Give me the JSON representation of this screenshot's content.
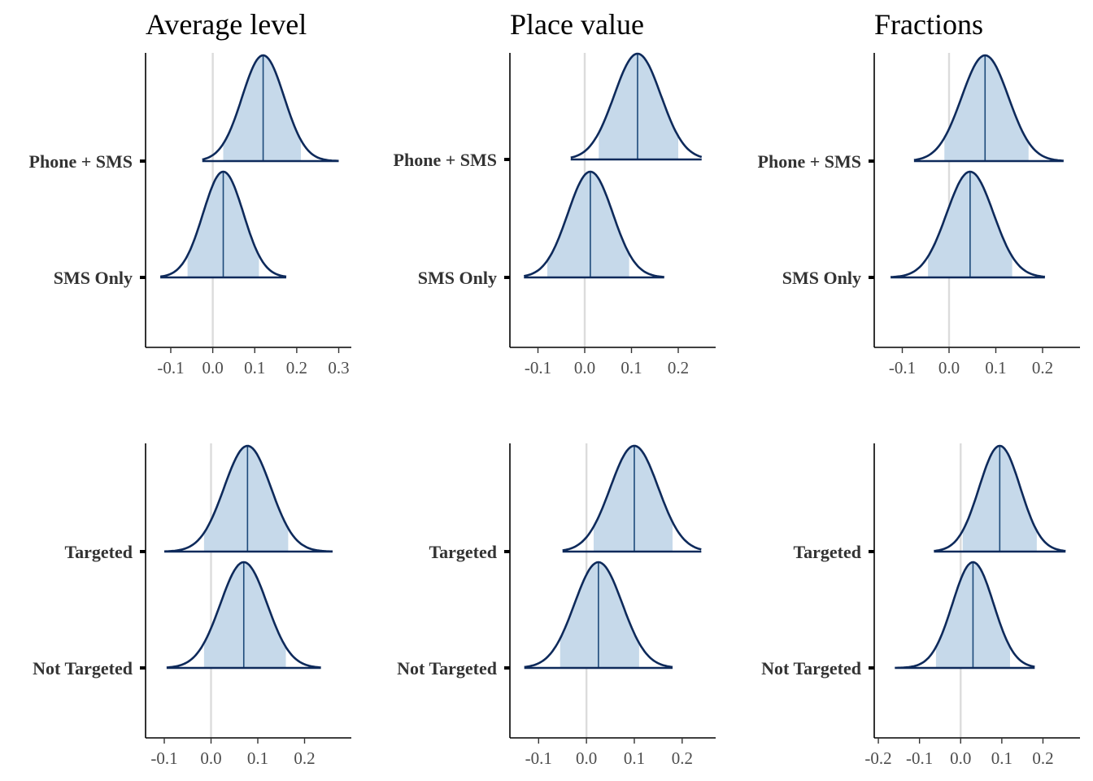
{
  "chart_data": [
    {
      "type": "ridgeline-density",
      "title": "Average level",
      "categories": [
        "Phone + SMS",
        "SMS Only"
      ],
      "xlim": [
        -0.16,
        0.33
      ],
      "xticks": [
        -0.1,
        0.0,
        0.1,
        0.2,
        0.3
      ],
      "xtick_labels": [
        "-0.1",
        "0.0",
        "0.1",
        "0.2",
        "0.3"
      ],
      "reference_line": 0,
      "distributions": [
        {
          "name": "Phone + SMS",
          "center": 0.12,
          "sd": 0.05,
          "range": [
            -0.025,
            0.3
          ],
          "interval": [
            0.025,
            0.21
          ]
        },
        {
          "name": "SMS Only",
          "center": 0.025,
          "sd": 0.048,
          "range": [
            -0.125,
            0.175
          ],
          "interval": [
            -0.06,
            0.11
          ]
        }
      ]
    },
    {
      "type": "ridgeline-density",
      "title": "Place value",
      "categories": [
        "Phone + SMS",
        "SMS Only"
      ],
      "xlim": [
        -0.16,
        0.28
      ],
      "xticks": [
        -0.1,
        0.0,
        0.1,
        0.2
      ],
      "xtick_labels": [
        "-0.1",
        "0.0",
        "0.1",
        "0.2"
      ],
      "reference_line": 0,
      "distributions": [
        {
          "name": "Phone + SMS",
          "center": 0.113,
          "sd": 0.05,
          "range": [
            -0.03,
            0.25
          ],
          "interval": [
            0.03,
            0.2
          ]
        },
        {
          "name": "SMS Only",
          "center": 0.012,
          "sd": 0.048,
          "range": [
            -0.13,
            0.17
          ],
          "interval": [
            -0.08,
            0.095
          ]
        }
      ]
    },
    {
      "type": "ridgeline-density",
      "title": "Fractions",
      "categories": [
        "Phone + SMS",
        "SMS Only"
      ],
      "xlim": [
        -0.16,
        0.28
      ],
      "xticks": [
        -0.1,
        0.0,
        0.1,
        0.2
      ],
      "xtick_labels": [
        "-0.1",
        "0.0",
        "0.1",
        "0.2"
      ],
      "reference_line": 0,
      "distributions": [
        {
          "name": "Phone + SMS",
          "center": 0.077,
          "sd": 0.05,
          "range": [
            -0.075,
            0.245
          ],
          "interval": [
            -0.01,
            0.17
          ]
        },
        {
          "name": "SMS Only",
          "center": 0.045,
          "sd": 0.05,
          "range": [
            -0.125,
            0.205
          ],
          "interval": [
            -0.045,
            0.135
          ]
        }
      ]
    },
    {
      "type": "ridgeline-density",
      "title": "",
      "categories": [
        "Targeted",
        "Not Targeted"
      ],
      "xlim": [
        -0.14,
        0.3
      ],
      "xticks": [
        -0.1,
        0.0,
        0.1,
        0.2
      ],
      "xtick_labels": [
        "-0.1",
        "0.0",
        "0.1",
        "0.2"
      ],
      "reference_line": 0,
      "distributions": [
        {
          "name": "Targeted",
          "center": 0.078,
          "sd": 0.05,
          "range": [
            -0.1,
            0.26
          ],
          "interval": [
            -0.015,
            0.165
          ]
        },
        {
          "name": "Not Targeted",
          "center": 0.07,
          "sd": 0.05,
          "range": [
            -0.095,
            0.235
          ],
          "interval": [
            -0.015,
            0.16
          ]
        }
      ]
    },
    {
      "type": "ridgeline-density",
      "title": "",
      "categories": [
        "Targeted",
        "Not Targeted"
      ],
      "xlim": [
        -0.16,
        0.27
      ],
      "xticks": [
        -0.1,
        0.0,
        0.1,
        0.2
      ],
      "xtick_labels": [
        "-0.1",
        "0.0",
        "0.1",
        "0.2"
      ],
      "reference_line": 0,
      "distributions": [
        {
          "name": "Targeted",
          "center": 0.1,
          "sd": 0.05,
          "range": [
            -0.05,
            0.24
          ],
          "interval": [
            0.015,
            0.18
          ]
        },
        {
          "name": "Not Targeted",
          "center": 0.025,
          "sd": 0.05,
          "range": [
            -0.13,
            0.18
          ],
          "interval": [
            -0.055,
            0.11
          ]
        }
      ]
    },
    {
      "type": "ridgeline-density",
      "title": "",
      "categories": [
        "Targeted",
        "Not Targeted"
      ],
      "xlim": [
        -0.21,
        0.29
      ],
      "xticks": [
        -0.2,
        -0.1,
        0.0,
        0.1,
        0.2
      ],
      "xtick_labels": [
        "-0.2",
        "-0.1",
        "0.0",
        "0.1",
        "0.2"
      ],
      "reference_line": 0,
      "distributions": [
        {
          "name": "Targeted",
          "center": 0.095,
          "sd": 0.05,
          "range": [
            -0.065,
            0.255
          ],
          "interval": [
            0.005,
            0.185
          ]
        },
        {
          "name": "Not Targeted",
          "center": 0.03,
          "sd": 0.05,
          "range": [
            -0.16,
            0.18
          ],
          "interval": [
            -0.06,
            0.12
          ]
        }
      ]
    }
  ],
  "colors": {
    "fill": "#c6d9ea",
    "outline": "#0e2a5b",
    "median_line": "#1d4a7a",
    "reference_line": "#dcdcdc",
    "axis": "#000000",
    "text": "#333333"
  }
}
